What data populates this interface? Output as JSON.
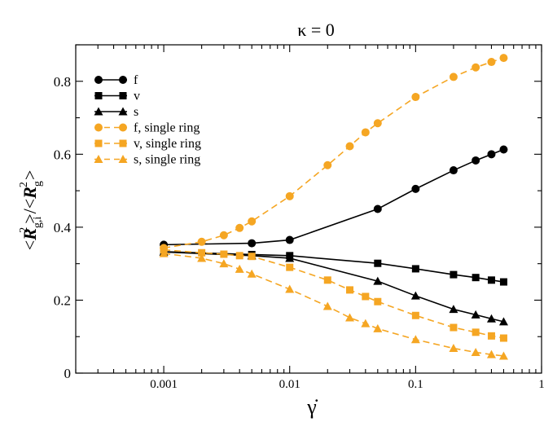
{
  "chart_data": {
    "type": "line",
    "title": "κ = 0",
    "xlabel": "γ̇",
    "ylabel": {
      "open": "<",
      "r1": "R",
      "sub1": "g,i",
      "sup1": "2",
      "mid": ">/<",
      "r2": "R",
      "sub2": "g",
      "sup2": "2",
      "close": ">"
    },
    "x_scale": "log",
    "xlim": [
      0.0002,
      1
    ],
    "ylim": [
      0,
      0.9
    ],
    "x_ticks": [
      {
        "value": 0.001,
        "label": "0.001"
      },
      {
        "value": 0.01,
        "label": "0.01"
      },
      {
        "value": 0.1,
        "label": "0.1"
      },
      {
        "value": 1,
        "label": "1"
      }
    ],
    "y_ticks": [
      {
        "value": 0,
        "label": "0"
      },
      {
        "value": 0.2,
        "label": "0.2"
      },
      {
        "value": 0.4,
        "label": "0.4"
      },
      {
        "value": 0.6,
        "label": "0.6"
      },
      {
        "value": 0.8,
        "label": "0.8"
      }
    ],
    "grid": false,
    "legend_position": "top-left",
    "series": [
      {
        "name": "f",
        "color": "#000000",
        "marker": "circle",
        "dashed": false,
        "x": [
          0.001,
          0.005,
          0.01,
          0.05,
          0.1,
          0.2,
          0.3,
          0.4,
          0.5
        ],
        "y": [
          0.352,
          0.356,
          0.365,
          0.45,
          0.505,
          0.556,
          0.583,
          0.6,
          0.613
        ]
      },
      {
        "name": "v",
        "color": "#000000",
        "marker": "square",
        "dashed": false,
        "x": [
          0.001,
          0.005,
          0.01,
          0.05,
          0.1,
          0.2,
          0.3,
          0.4,
          0.5
        ],
        "y": [
          0.333,
          0.325,
          0.322,
          0.301,
          0.286,
          0.27,
          0.262,
          0.255,
          0.25
        ]
      },
      {
        "name": "s",
        "color": "#000000",
        "marker": "triangle",
        "dashed": false,
        "x": [
          0.001,
          0.005,
          0.01,
          0.05,
          0.1,
          0.2,
          0.3,
          0.4,
          0.5
        ],
        "y": [
          0.332,
          0.322,
          0.315,
          0.252,
          0.212,
          0.175,
          0.16,
          0.149,
          0.141
        ]
      },
      {
        "name": "f, single ring",
        "color": "#f5a623",
        "marker": "circle",
        "dashed": true,
        "x": [
          0.001,
          0.002,
          0.003,
          0.004,
          0.005,
          0.01,
          0.02,
          0.03,
          0.04,
          0.05,
          0.1,
          0.2,
          0.3,
          0.4,
          0.5
        ],
        "y": [
          0.343,
          0.36,
          0.378,
          0.398,
          0.416,
          0.485,
          0.57,
          0.622,
          0.66,
          0.685,
          0.757,
          0.812,
          0.838,
          0.853,
          0.864
        ]
      },
      {
        "name": "v, single ring",
        "color": "#f5a623",
        "marker": "square",
        "dashed": true,
        "x": [
          0.001,
          0.002,
          0.003,
          0.004,
          0.005,
          0.01,
          0.02,
          0.03,
          0.04,
          0.05,
          0.1,
          0.2,
          0.3,
          0.4,
          0.5
        ],
        "y": [
          0.338,
          0.33,
          0.326,
          0.322,
          0.32,
          0.29,
          0.255,
          0.228,
          0.21,
          0.196,
          0.158,
          0.125,
          0.112,
          0.102,
          0.096
        ]
      },
      {
        "name": "s, single ring",
        "color": "#f5a623",
        "marker": "triangle",
        "dashed": true,
        "x": [
          0.001,
          0.002,
          0.003,
          0.004,
          0.005,
          0.01,
          0.02,
          0.03,
          0.04,
          0.05,
          0.1,
          0.2,
          0.3,
          0.4,
          0.5
        ],
        "y": [
          0.328,
          0.315,
          0.3,
          0.285,
          0.272,
          0.23,
          0.183,
          0.152,
          0.136,
          0.122,
          0.092,
          0.068,
          0.057,
          0.051,
          0.047
        ]
      }
    ]
  }
}
